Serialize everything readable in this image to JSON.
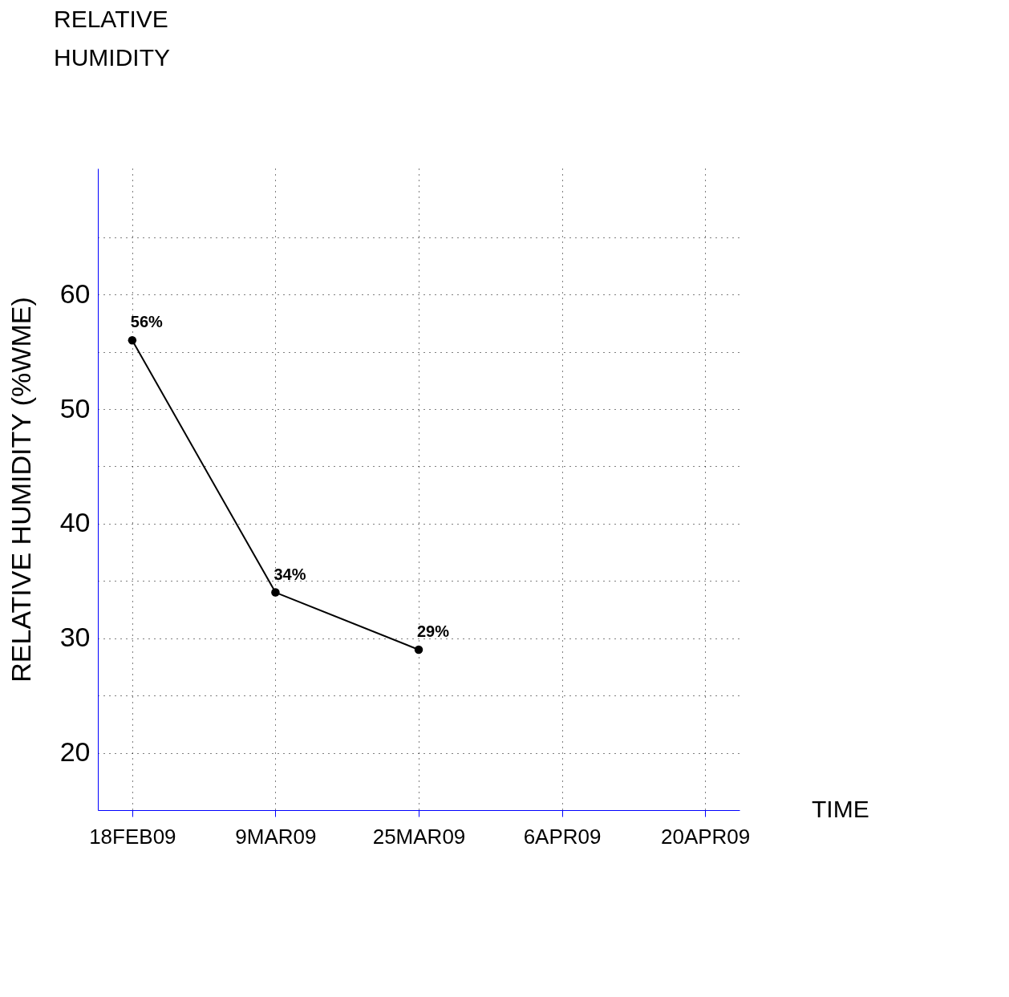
{
  "chart_data": {
    "type": "line",
    "categories": [
      "18FEB09",
      "9MAR09",
      "25MAR09",
      "6APR09",
      "20APR09"
    ],
    "series": [
      {
        "color": "#000000",
        "values": [
          56,
          34,
          29,
          null,
          null
        ]
      }
    ],
    "ylabel": "RELATIVE HUMIDITY (%WME)",
    "xlabel": "TIME",
    "annotations": [
      "RELATIVE HUMIDITY"
    ],
    "value_labels": [
      "56%",
      "34%",
      "29%",
      null,
      null
    ],
    "ylim": [
      15,
      71
    ],
    "yticks": [
      20,
      {
        "value": 25,
        "label": null
      },
      30,
      {
        "value": 35,
        "label": null
      },
      40,
      {
        "value": 45,
        "label": null
      },
      50,
      {
        "value": 55,
        "label": null
      },
      60,
      {
        "value": 65,
        "label": null
      }
    ],
    "grid": true,
    "marker": "circle",
    "line_style": "solid"
  }
}
